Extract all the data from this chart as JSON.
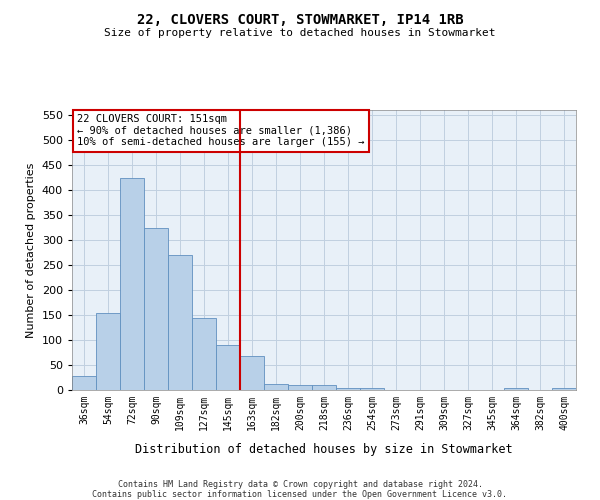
{
  "title": "22, CLOVERS COURT, STOWMARKET, IP14 1RB",
  "subtitle": "Size of property relative to detached houses in Stowmarket",
  "xlabel": "Distribution of detached houses by size in Stowmarket",
  "ylabel": "Number of detached properties",
  "categories": [
    "36sqm",
    "54sqm",
    "72sqm",
    "90sqm",
    "109sqm",
    "127sqm",
    "145sqm",
    "163sqm",
    "182sqm",
    "200sqm",
    "218sqm",
    "236sqm",
    "254sqm",
    "273sqm",
    "291sqm",
    "309sqm",
    "327sqm",
    "345sqm",
    "364sqm",
    "382sqm",
    "400sqm"
  ],
  "values": [
    28,
    155,
    425,
    325,
    270,
    145,
    90,
    68,
    12,
    10,
    10,
    5,
    4,
    1,
    0,
    0,
    0,
    0,
    4,
    0,
    4
  ],
  "bar_color": "#b8d0e8",
  "bar_edge_color": "#6090c0",
  "grid_color": "#c0cfe0",
  "background_color": "#e8f0f8",
  "vline_x": 6.5,
  "vline_color": "#cc0000",
  "annotation_text": "22 CLOVERS COURT: 151sqm\n← 90% of detached houses are smaller (1,386)\n10% of semi-detached houses are larger (155) →",
  "annotation_box_color": "#ffffff",
  "annotation_box_edge": "#cc0000",
  "ylim": [
    0,
    560
  ],
  "yticks": [
    0,
    50,
    100,
    150,
    200,
    250,
    300,
    350,
    400,
    450,
    500,
    550
  ],
  "footer": "Contains HM Land Registry data © Crown copyright and database right 2024.\nContains public sector information licensed under the Open Government Licence v3.0."
}
